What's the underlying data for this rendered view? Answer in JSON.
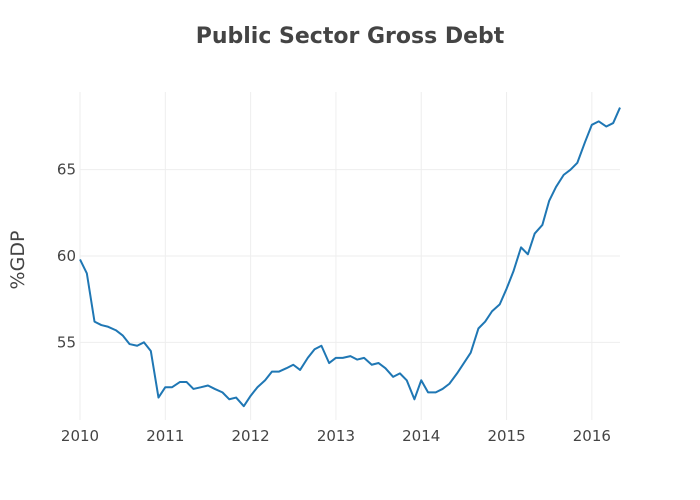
{
  "chart_data": {
    "type": "line",
    "title": "Public Sector Gross Debt",
    "xlabel": "",
    "ylabel": "%GDP",
    "xlim": [
      2010.0,
      2016.33
    ],
    "ylim": [
      50.5,
      69.5
    ],
    "x_ticks": [
      2010,
      2011,
      2012,
      2013,
      2014,
      2015,
      2016
    ],
    "x_tick_labels": [
      "2010",
      "2011",
      "2012",
      "2013",
      "2014",
      "2015",
      "2016"
    ],
    "y_ticks": [
      55,
      60,
      65
    ],
    "y_tick_labels": [
      "55",
      "60",
      "65"
    ],
    "grid": true,
    "line_color": "#1f77b4",
    "series": [
      {
        "x": [
          2010.0,
          2010.08,
          2010.17,
          2010.25,
          2010.33,
          2010.42,
          2010.5,
          2010.58,
          2010.67,
          2010.75,
          2010.83,
          2010.92,
          2011.0,
          2011.08,
          2011.17,
          2011.25,
          2011.33,
          2011.42,
          2011.5,
          2011.58,
          2011.67,
          2011.75,
          2011.83,
          2011.92,
          2012.0,
          2012.08,
          2012.17,
          2012.25,
          2012.33,
          2012.42,
          2012.5,
          2012.58,
          2012.67,
          2012.75,
          2012.83,
          2012.92,
          2013.0,
          2013.08,
          2013.17,
          2013.25,
          2013.33,
          2013.42,
          2013.5,
          2013.58,
          2013.67,
          2013.75,
          2013.83,
          2013.92,
          2014.0,
          2014.08,
          2014.17,
          2014.25,
          2014.33,
          2014.42,
          2014.5,
          2014.58,
          2014.67,
          2014.75,
          2014.83,
          2014.92,
          2015.0,
          2015.08,
          2015.17,
          2015.25,
          2015.33,
          2015.42,
          2015.5,
          2015.58,
          2015.67,
          2015.75,
          2015.83,
          2015.92,
          2016.0,
          2016.08,
          2016.17,
          2016.25,
          2016.33
        ],
        "y": [
          59.8,
          59.0,
          56.2,
          56.0,
          55.9,
          55.7,
          55.4,
          54.9,
          54.8,
          55.0,
          54.5,
          51.8,
          52.4,
          52.4,
          52.7,
          52.7,
          52.3,
          52.4,
          52.5,
          52.3,
          52.1,
          51.7,
          51.8,
          51.3,
          51.9,
          52.4,
          52.8,
          53.3,
          53.3,
          53.5,
          53.7,
          53.4,
          54.1,
          54.6,
          54.8,
          53.8,
          54.1,
          54.1,
          54.2,
          54.0,
          54.1,
          53.7,
          53.8,
          53.5,
          53.0,
          53.2,
          52.8,
          51.7,
          52.8,
          52.1,
          52.1,
          52.3,
          52.6,
          53.2,
          53.8,
          54.4,
          55.8,
          56.2,
          56.8,
          57.2,
          58.1,
          59.1,
          60.5,
          60.1,
          61.3,
          61.8,
          63.2,
          64.0,
          64.7,
          65.0,
          65.4,
          66.6,
          67.6,
          67.8,
          67.5,
          67.7,
          68.6
        ]
      }
    ]
  }
}
